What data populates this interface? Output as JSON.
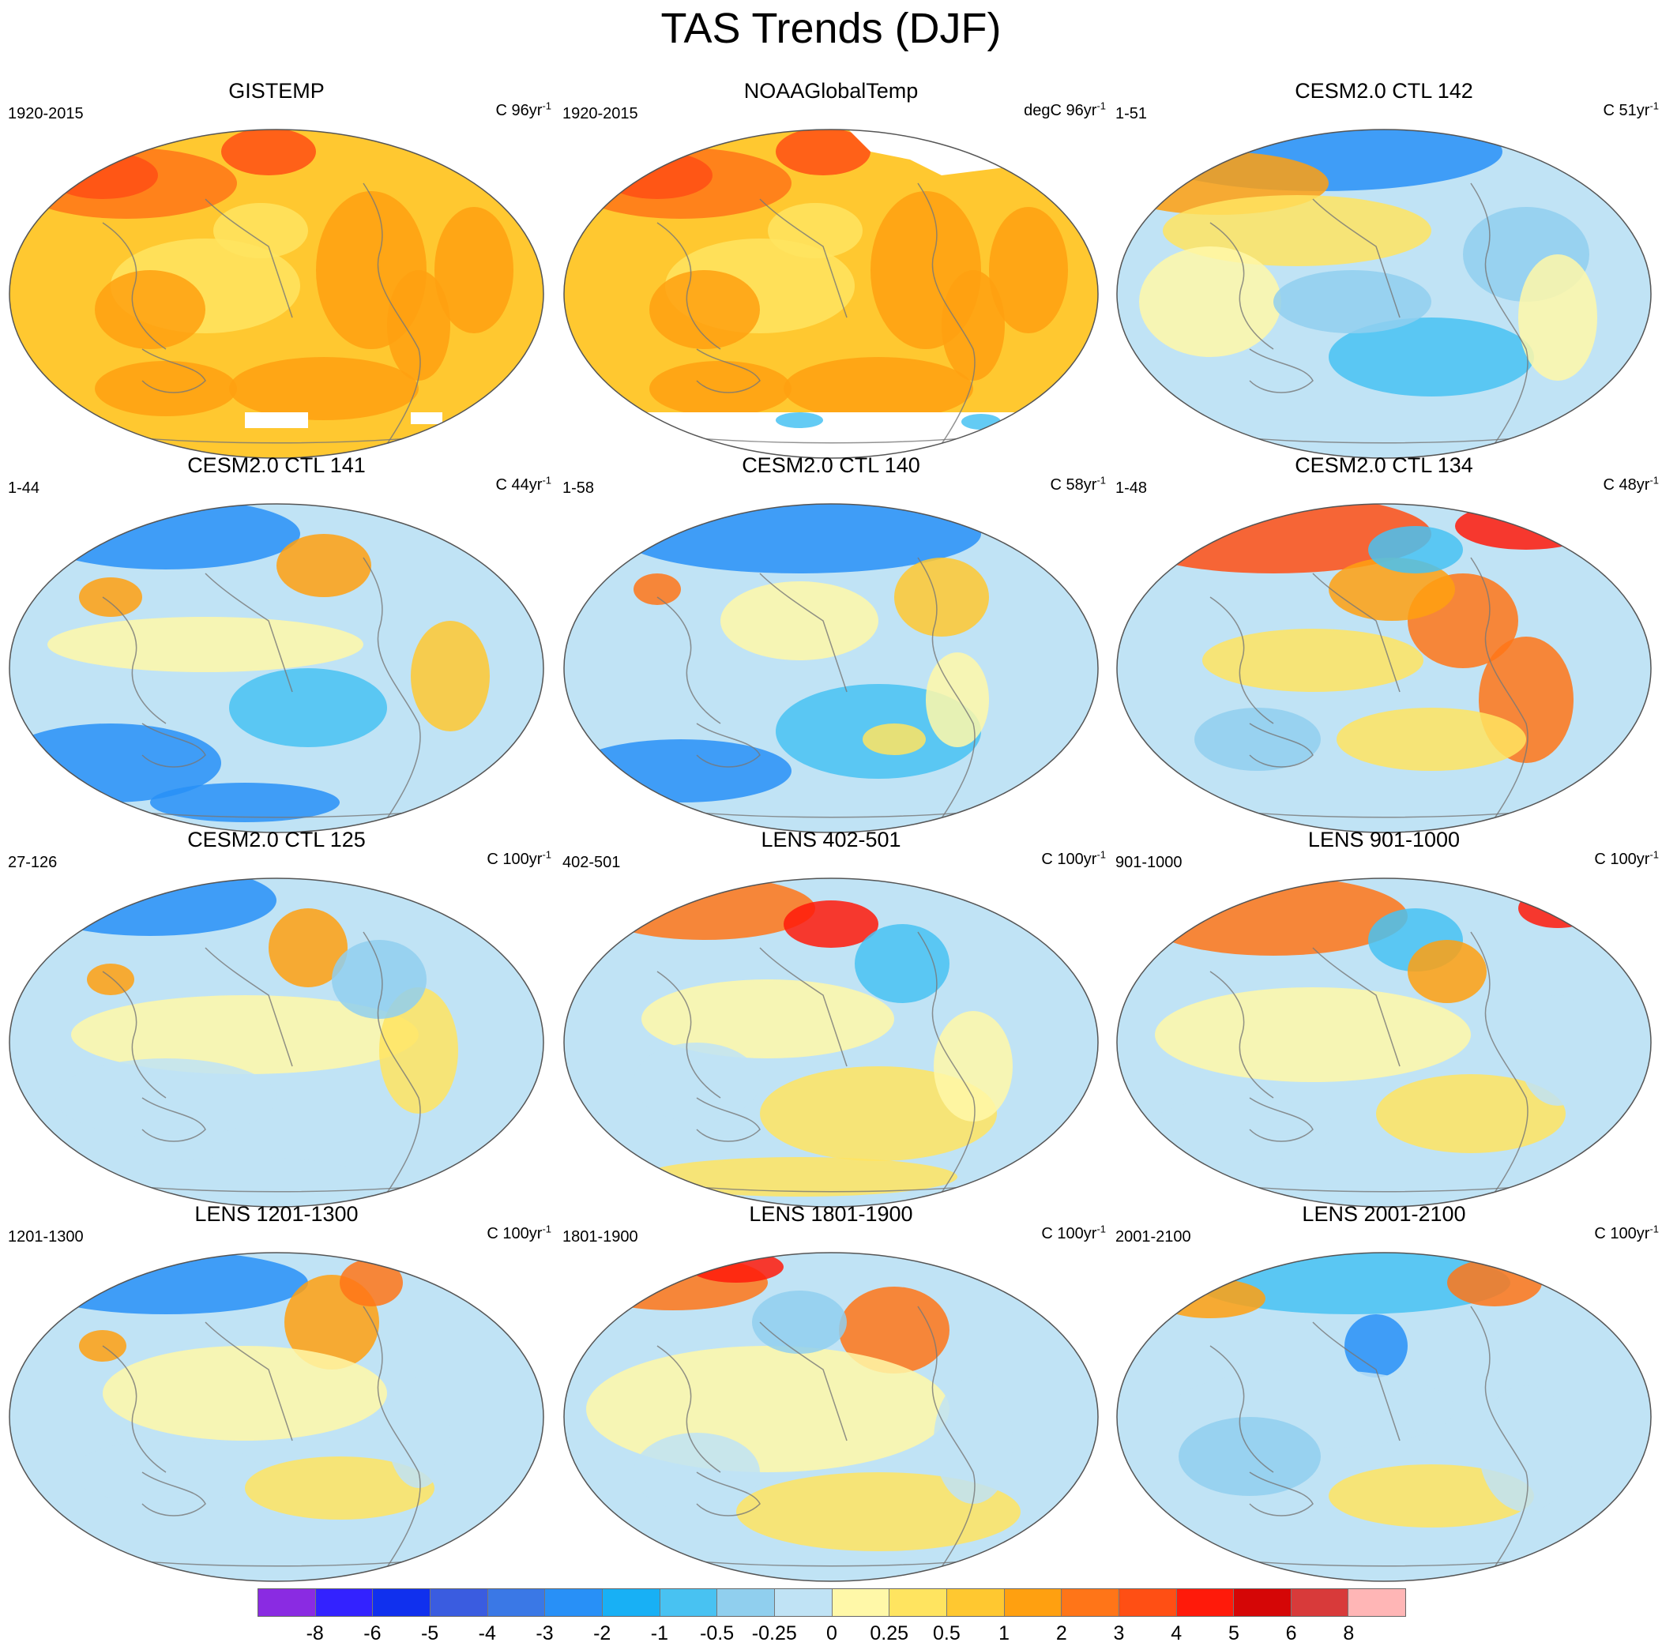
{
  "title": "TAS Trends (DJF)",
  "panels": [
    {
      "title": "GISTEMP",
      "left": "1920-2015",
      "unit": "C 96yr",
      "sup": "-1",
      "warm": true,
      "mask": "gis"
    },
    {
      "title": "NOAAGlobalTemp",
      "left": "1920-2015",
      "unit": "degC 96yr",
      "sup": "-1",
      "warm": true,
      "mask": "noaa"
    },
    {
      "title": "CESM2.0 CTL 142",
      "left": "1-51",
      "unit": "C 51yr",
      "sup": "-1",
      "warm": false
    },
    {
      "title": "CESM2.0 CTL 141",
      "left": "1-44",
      "unit": "C 44yr",
      "sup": "-1",
      "warm": false
    },
    {
      "title": "CESM2.0 CTL 140",
      "left": "1-58",
      "unit": "C 58yr",
      "sup": "-1",
      "warm": false
    },
    {
      "title": "CESM2.0 CTL 134",
      "left": "1-48",
      "unit": "C 48yr",
      "sup": "-1",
      "warm": false
    },
    {
      "title": "CESM2.0 CTL 125",
      "left": "27-126",
      "unit": "C 100yr",
      "sup": "-1",
      "warm": false
    },
    {
      "title": "LENS 402-501",
      "left": "402-501",
      "unit": "C 100yr",
      "sup": "-1",
      "warm": false
    },
    {
      "title": "LENS 901-1000",
      "left": "901-1000",
      "unit": "C 100yr",
      "sup": "-1",
      "warm": false
    },
    {
      "title": "LENS 1201-1300",
      "left": "1201-1300",
      "unit": "C 100yr",
      "sup": "-1",
      "warm": false
    },
    {
      "title": "LENS 1801-1900",
      "left": "1801-1900",
      "unit": "C 100yr",
      "sup": "-1",
      "warm": false
    },
    {
      "title": "LENS 2001-2100",
      "left": "2001-2100",
      "unit": "C 100yr",
      "sup": "-1",
      "warm": false
    }
  ],
  "colorbar": {
    "colors": [
      "#8a2be2",
      "#3322ff",
      "#1030ee",
      "#3a5ce0",
      "#3a78e6",
      "#2890f7",
      "#18b0f5",
      "#48c2f2",
      "#90cfee",
      "#c0e3f5",
      "#fff8a8",
      "#ffe460",
      "#ffc830",
      "#ffa010",
      "#ff7518",
      "#ff4f14",
      "#ff1a0a",
      "#d50606",
      "#d83a3a",
      "#ffb6b6"
    ],
    "labels": [
      "-8",
      "-6",
      "-5",
      "-4",
      "-3",
      "-2",
      "-1",
      "-0.5",
      "-0.25",
      "0",
      "0.25",
      "0.5",
      "1",
      "2",
      "3",
      "4",
      "5",
      "6",
      "8"
    ]
  }
}
